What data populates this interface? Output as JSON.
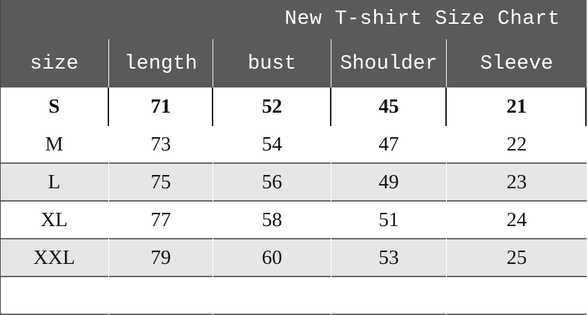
{
  "title": "New T-shirt Size Chart",
  "columns": [
    "size",
    "length",
    "bust",
    "Shoulder",
    "Sleeve"
  ],
  "rows": [
    [
      "S",
      "71",
      "52",
      "45",
      "21"
    ],
    [
      "M",
      "73",
      "54",
      "47",
      "22"
    ],
    [
      "L",
      "75",
      "56",
      "49",
      "23"
    ],
    [
      "XL",
      "77",
      "58",
      "51",
      "24"
    ],
    [
      "XXL",
      "79",
      "60",
      "53",
      "25"
    ],
    [
      "",
      "",
      "",
      "",
      ""
    ]
  ],
  "colors": {
    "header_bg": "#5a5a5a",
    "shaded_row": "#e6e6e6"
  }
}
